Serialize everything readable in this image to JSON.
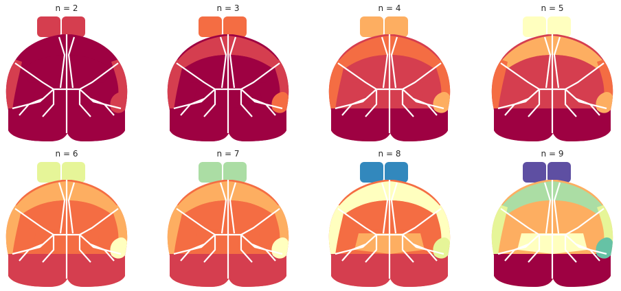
{
  "palette": {
    "c1": "#9e0142",
    "c2": "#d53e4f",
    "c3": "#f46d43",
    "c4": "#fdae61",
    "c5": "#fee08b",
    "c6": "#ffffbf",
    "c7": "#e6f598",
    "c8": "#abdda4",
    "c9": "#66c2a5",
    "c10": "#3288bd",
    "c11": "#5e4fa2"
  },
  "panels": [
    {
      "title": "n = 2",
      "colors": {
        "ob": "#d53e4f",
        "top": "#9e0142",
        "upper": "#9e0142",
        "mid": "#9e0142",
        "center": "#9e0142",
        "lower": "#9e0142",
        "right": "#d53e4f",
        "left": "#d53e4f",
        "patch": "#d53e4f"
      }
    },
    {
      "title": "n = 3",
      "colors": {
        "ob": "#f46d43",
        "top": "#d53e4f",
        "upper": "#9e0142",
        "mid": "#9e0142",
        "center": "#9e0142",
        "lower": "#9e0142",
        "right": "#d53e4f",
        "left": "#d53e4f",
        "patch": "#f46d43"
      }
    },
    {
      "title": "n = 4",
      "colors": {
        "ob": "#fdae61",
        "top": "#f46d43",
        "upper": "#d53e4f",
        "mid": "#d53e4f",
        "center": "#d53e4f",
        "lower": "#9e0142",
        "right": "#f46d43",
        "left": "#f46d43",
        "patch": "#fdae61"
      }
    },
    {
      "title": "n = 5",
      "colors": {
        "ob": "#ffffbf",
        "top": "#fdae61",
        "upper": "#d53e4f",
        "mid": "#d53e4f",
        "center": "#d53e4f",
        "lower": "#9e0142",
        "right": "#f46d43",
        "left": "#f46d43",
        "patch": "#fdae61"
      }
    },
    {
      "title": "n = 6",
      "colors": {
        "ob": "#e6f598",
        "top": "#fdae61",
        "upper": "#f46d43",
        "mid": "#f46d43",
        "center": "#f46d43",
        "lower": "#d53e4f",
        "right": "#fdae61",
        "left": "#fdae61",
        "patch": "#ffffbf"
      }
    },
    {
      "title": "n = 7",
      "colors": {
        "ob": "#abdda4",
        "top": "#fdae61",
        "upper": "#f46d43",
        "mid": "#f46d43",
        "center": "#f46d43",
        "lower": "#d53e4f",
        "right": "#fdae61",
        "left": "#fdae61",
        "patch": "#ffffbf"
      }
    },
    {
      "title": "n = 8",
      "colors": {
        "ob": "#3288bd",
        "top": "#ffffbf",
        "upper": "#f46d43",
        "mid": "#f46d43",
        "center": "#fdae61",
        "lower": "#d53e4f",
        "right": "#ffffbf",
        "left": "#ffffbf",
        "patch": "#e6f598"
      }
    },
    {
      "title": "n = 9",
      "colors": {
        "ob": "#5e4fa2",
        "top": "#abdda4",
        "upper": "#fdae61",
        "mid": "#fdae61",
        "center": "#ffffbf",
        "lower": "#9e0142",
        "right": "#e6f598",
        "left": "#e6f598",
        "patch": "#66c2a5"
      }
    }
  ]
}
